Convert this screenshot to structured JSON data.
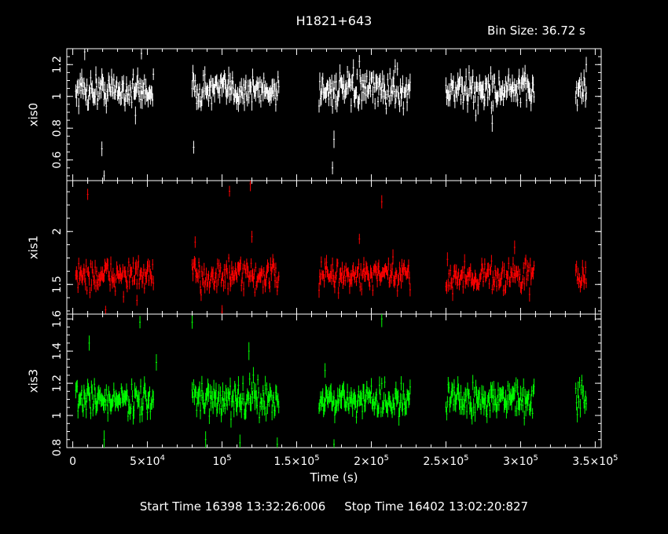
{
  "header": {
    "title": "H1821+643",
    "bin_size_label": "Bin Size: 36.72 s"
  },
  "footer": {
    "start_label": "Start Time",
    "start_value": "16398 13:32:26:006",
    "stop_label": "Stop Time",
    "stop_value": "16402 13:02:20:827"
  },
  "chart_data": {
    "type": "scatter",
    "title": "H1821+643",
    "xlabel": "Time (s)",
    "xlim": [
      -4000,
      354000
    ],
    "x_ticks": [
      {
        "value": 0,
        "base": "0",
        "exp": ""
      },
      {
        "value": 50000,
        "base": "5×10",
        "exp": "4"
      },
      {
        "value": 100000,
        "base": "10",
        "exp": "5"
      },
      {
        "value": 150000,
        "base": "1.5×10",
        "exp": "5"
      },
      {
        "value": 200000,
        "base": "2×10",
        "exp": "5"
      },
      {
        "value": 250000,
        "base": "2.5×10",
        "exp": "5"
      },
      {
        "value": 300000,
        "base": "3×10",
        "exp": "5"
      },
      {
        "value": 350000,
        "base": "3.5×10",
        "exp": "5"
      }
    ],
    "segments": [
      [
        2000,
        54000
      ],
      [
        80000,
        138000
      ],
      [
        165000,
        226000
      ],
      [
        250000,
        309000
      ],
      [
        337000,
        344000
      ]
    ],
    "panels": [
      {
        "name": "xis0",
        "ylabel": "xis0",
        "color": "#ffffff",
        "ylim": [
          0.47,
          1.3
        ],
        "yticks": [
          0.6,
          0.8,
          1,
          1.2
        ],
        "ytick_labels": [
          "0.6",
          "0.8",
          "1",
          "1.2"
        ],
        "mean": 1.04,
        "noise": 0.05,
        "err": 0.045,
        "dips": [
          [
            19500,
            0.67
          ],
          [
            21000,
            0.5
          ],
          [
            81000,
            0.68
          ],
          [
            174000,
            0.55
          ],
          [
            175000,
            0.73
          ],
          [
            42000,
            0.88
          ],
          [
            270000,
            0.88
          ],
          [
            281000,
            0.83
          ]
        ],
        "spikes": [
          [
            8000,
            1.28
          ],
          [
            46000,
            1.27
          ],
          [
            192000,
            1.22
          ],
          [
            216000,
            1.19
          ],
          [
            344000,
            1.2
          ]
        ]
      },
      {
        "name": "xis1",
        "ylabel": "xis1",
        "color": "#ff0000",
        "ylim": [
          1.22,
          2.48
        ],
        "yticks": [
          1.5,
          2
        ],
        "ytick_labels": [
          "1.5",
          "2"
        ],
        "mean": 1.58,
        "noise": 0.07,
        "err": 0.055,
        "dips": [
          [
            22000,
            1.26
          ],
          [
            100000,
            1.24
          ],
          [
            43000,
            1.35
          ]
        ],
        "spikes": [
          [
            10000,
            2.35
          ],
          [
            105000,
            2.38
          ],
          [
            119000,
            2.45
          ],
          [
            207000,
            2.28
          ],
          [
            82000,
            1.9
          ],
          [
            120000,
            1.95
          ],
          [
            192000,
            1.93
          ],
          [
            296000,
            1.85
          ]
        ]
      },
      {
        "name": "xis3",
        "ylabel": "xis3",
        "color": "#00ff00",
        "ylim": [
          0.8,
          1.63
        ],
        "yticks": [
          0.8,
          1,
          1.2,
          1.4,
          1.6
        ],
        "ytick_labels": [
          "0.8",
          "1",
          "1.2",
          "1.4",
          "1.6"
        ],
        "mean": 1.1,
        "noise": 0.05,
        "err": 0.045,
        "dips": [
          [
            21000,
            0.85
          ],
          [
            112000,
            0.83
          ],
          [
            137000,
            0.82
          ],
          [
            175000,
            0.82
          ],
          [
            89000,
            0.85
          ]
        ],
        "spikes": [
          [
            11000,
            1.45
          ],
          [
            45000,
            1.58
          ],
          [
            56000,
            1.33
          ],
          [
            80000,
            1.58
          ],
          [
            118000,
            1.4
          ],
          [
            207000,
            1.6
          ],
          [
            169000,
            1.28
          ]
        ]
      }
    ]
  }
}
